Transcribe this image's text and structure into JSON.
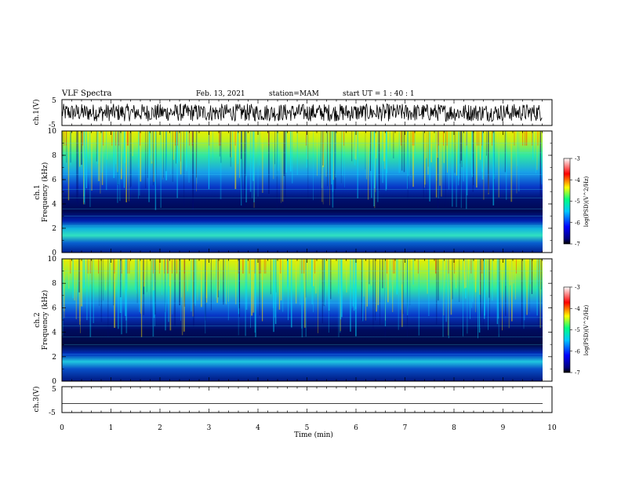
{
  "header": {
    "title": "VLF Spectra",
    "date": "Feb. 13, 2021",
    "station": "station=MAM",
    "start_ut": "start UT =  1 : 40 : 1"
  },
  "chart_data": [
    {
      "type": "line",
      "panel": "ch1-waveform",
      "ylabel": "ch.1(V)",
      "ylim": [
        -5,
        5
      ],
      "yticks": [
        "5",
        "-5"
      ],
      "xlim": [
        0,
        10
      ],
      "note": "dense waveform, amplitude roughly -4 to 4 V"
    },
    {
      "type": "heatmap",
      "panel": "ch1-spectrogram",
      "ylabel": "ch.1 Frequency (kHz)",
      "ylim": [
        0,
        10
      ],
      "yticks": [
        "0",
        "2",
        "4",
        "6",
        "8",
        "10"
      ],
      "xlim": [
        0,
        10
      ],
      "colorbar": {
        "label": "log(PSD)(V^2/Hz)",
        "ticks": [
          "-3",
          "-4",
          "-5",
          "-6",
          "-7"
        ],
        "range": [
          -7,
          -3
        ]
      }
    },
    {
      "type": "heatmap",
      "panel": "ch2-spectrogram",
      "ylabel": "ch.2 Frequency (kHz)",
      "ylim": [
        0,
        10
      ],
      "yticks": [
        "0",
        "2",
        "4",
        "6",
        "8",
        "10"
      ],
      "xlim": [
        0,
        10
      ],
      "colorbar": {
        "label": "log(PSD)(V^2/Hz)",
        "ticks": [
          "-3",
          "-4",
          "-5",
          "-6",
          "-7"
        ],
        "range": [
          -7,
          -3
        ]
      }
    },
    {
      "type": "line",
      "panel": "ch3-waveform",
      "ylabel": "ch.3(V)",
      "ylim": [
        -5,
        5
      ],
      "yticks": [
        "5",
        "-5"
      ],
      "xlim": [
        0,
        10
      ],
      "note": "flat line near -1.5 V"
    }
  ],
  "xaxis": {
    "label": "Time (min)",
    "ticks": [
      "0",
      "1",
      "2",
      "3",
      "4",
      "5",
      "6",
      "7",
      "8",
      "9",
      "10"
    ]
  },
  "colors": {
    "frame": "#000000",
    "colormap": [
      "#000080",
      "#0000ff",
      "#00c8ff",
      "#00ff80",
      "#ffff00",
      "#ff0000",
      "#ffffff"
    ]
  }
}
